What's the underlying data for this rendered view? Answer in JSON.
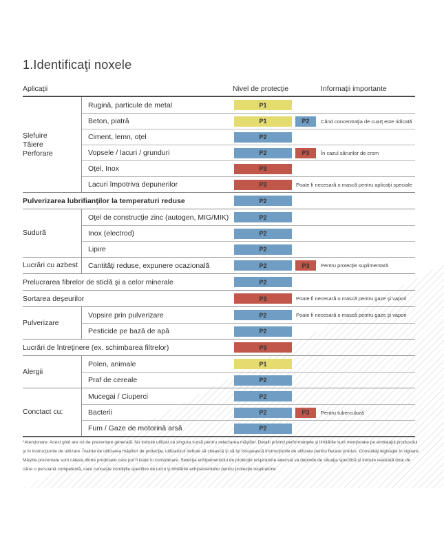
{
  "title": "1.Identificaţi noxele",
  "headers": {
    "applications": "Aplicaţii",
    "protection_level": "Nivel de protecţie",
    "important_info": "Informaţii importante"
  },
  "palette": {
    "p1_yellow": "#e5dc6f",
    "p2_blue": "#6f9dc4",
    "p3_red": "#c1574b",
    "badge_text": "#333333"
  },
  "sections": [
    {
      "kind": "group",
      "label_lines": [
        "Şlefuire",
        "Tăiere",
        "Perforare"
      ],
      "rows": [
        {
          "label": "Rugină, particule de metal",
          "badge1": "P1"
        },
        {
          "label": "Beton, piatră",
          "badge1": "P1",
          "badge2": "P2",
          "info": "Când concentraţia de cuarţ este ridicată"
        },
        {
          "label": "Ciment, lemn, oţel",
          "badge1": "P2"
        },
        {
          "label": "Vopsele / lacuri / grunduri",
          "badge1": "P2",
          "badge2": "P3",
          "info": "În cazul sărurilor de crom"
        },
        {
          "label": "Oţel, Inox",
          "badge1": "P3"
        },
        {
          "label": "Lacuri împotriva depunerilor",
          "badge1": "P3",
          "info": "Poate fi necesară o mască pentru aplicaţii speciale"
        }
      ]
    },
    {
      "kind": "full",
      "row": {
        "label": "Pulverizarea lubrifianţilor la temperaturi reduse",
        "badge1": "P2"
      }
    },
    {
      "kind": "group",
      "label_lines": [
        "Sudură"
      ],
      "rows": [
        {
          "label": "Oţel de construcţie zinc (autogen, MIG/MIK)",
          "badge1": "P2"
        },
        {
          "label": "Inox (electrod)",
          "badge1": "P2"
        },
        {
          "label": "Lipire",
          "badge1": "P2"
        }
      ]
    },
    {
      "kind": "group",
      "label_lines": [
        "Lucrări cu azbest"
      ],
      "rows": [
        {
          "label": "Cantităţi reduse, expunere ocazională",
          "badge1": "P2",
          "badge2": "P3",
          "info": "Pentru protecţie suplimentară"
        }
      ]
    },
    {
      "kind": "full",
      "row": {
        "label": "Prelucrarea fibrelor de sticlă şi a celor minerale",
        "badge1": "P2"
      }
    },
    {
      "kind": "full",
      "row": {
        "label": "Sortarea deşeurilor",
        "badge1": "P3",
        "info": "Poate fi necesară o mască pentru gaze şi vapori"
      }
    },
    {
      "kind": "group",
      "label_lines": [
        "Pulverizare"
      ],
      "rows": [
        {
          "label": "Vopsire prin pulverizare",
          "badge1": "P2",
          "info": "Poate fi necesară o mască pentru gaze şi vapori"
        },
        {
          "label": "Pesticide pe bază de apă",
          "badge1": "P2"
        }
      ]
    },
    {
      "kind": "full",
      "row": {
        "label": "Lucrări de întreţinere (ex. schimbarea filtrelor)",
        "badge1": "P3"
      }
    },
    {
      "kind": "group",
      "label_lines": [
        "Alergii"
      ],
      "rows": [
        {
          "label": "Polen, animale",
          "badge1": "P1"
        },
        {
          "label": "Praf de cereale",
          "badge1": "P2"
        }
      ]
    },
    {
      "kind": "group",
      "label_lines": [
        "Conctact cu:"
      ],
      "rows": [
        {
          "label": "Mucegai / Ciuperci",
          "badge1": "P2"
        },
        {
          "label": "Bacterii",
          "badge1": "P2",
          "badge2": "P3",
          "info": "Pentru tuberculoză"
        },
        {
          "label": "Fum / Gaze de motorină arsă",
          "badge1": "P2"
        }
      ]
    }
  ],
  "footnote": "*Atenţionare: Acest ghid are rol de prezentare generală. Nu trebuie utilizat ca singura sursă pentru selectarea măştilor. Detalii privind performanţele şi limitările sunt menţionate pe ambalajul produsului şi în instrucţiunile de utilizare. Înainte de utilizarea măştilor de protecţie, utilizatorul trebuie să citească şi să îşi însuşească instrucţiunile de utilizare pentru fiecare produs. Consultaţi legislaţia în vigoare. Măştile prezentate sunt câteva dintre produsele care pot fi luate în considerare. Selecţia echipamentului de protecţie respiratorie adecvat va depinde de situaţia specifică şi trebuie realizată doar de către o persoană competentă, care cunoaşte condiţiile specifice de lucru şi limitările echipamentelor pentru protecţie respiratorie"
}
